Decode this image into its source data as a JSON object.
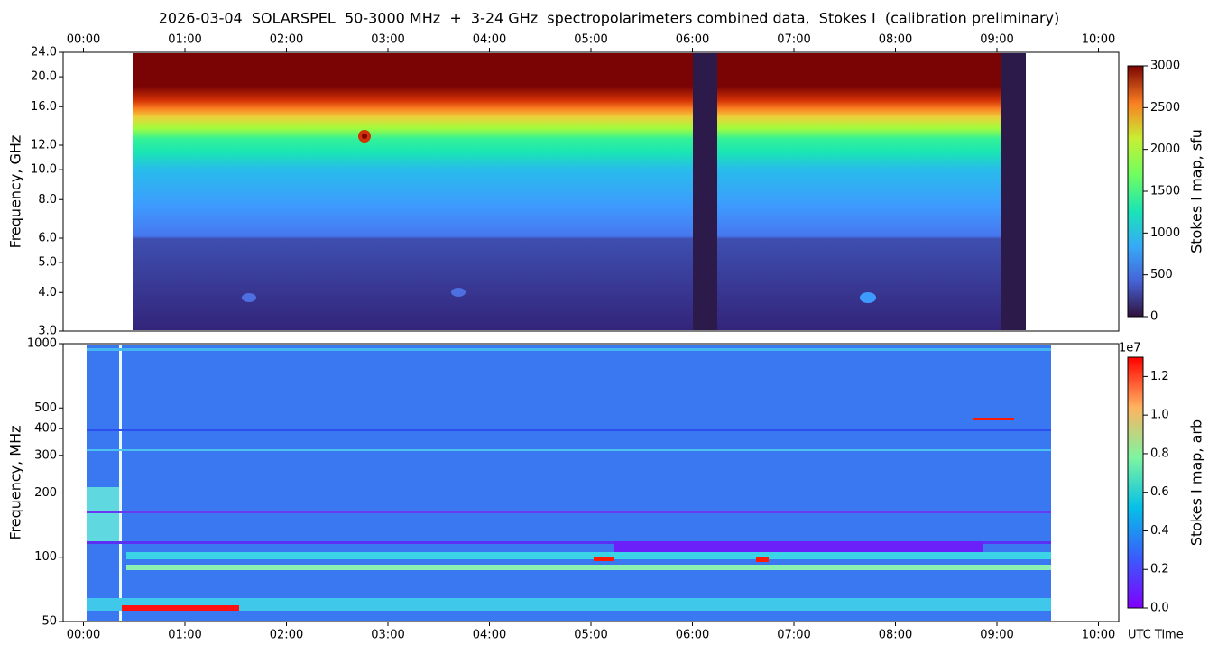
{
  "title": "2026-03-04  SOLARSPEL  50-3000 MHz  +  3-24 GHz  spectropolarimeters combined data,  Stokes I  (calibration preliminary)",
  "chart_data": [
    {
      "type": "heatmap",
      "ylabel": "Frequency, GHz",
      "log_y": true,
      "xtick_side": "top",
      "xlim": [
        -0.2,
        10.2
      ],
      "xticks": [
        {
          "value": 0,
          "label": "00:00"
        },
        {
          "value": 1,
          "label": "01:00"
        },
        {
          "value": 2,
          "label": "02:00"
        },
        {
          "value": 3,
          "label": "03:00"
        },
        {
          "value": 4,
          "label": "04:00"
        },
        {
          "value": 5,
          "label": "05:00"
        },
        {
          "value": 6,
          "label": "06:00"
        },
        {
          "value": 7,
          "label": "07:00"
        },
        {
          "value": 8,
          "label": "08:00"
        },
        {
          "value": 9,
          "label": "09:00"
        },
        {
          "value": 10,
          "label": "10:00"
        }
      ],
      "ylim": [
        3,
        24
      ],
      "yticks": [
        {
          "value": 3,
          "label": "3.0"
        },
        {
          "value": 4,
          "label": "4.0"
        },
        {
          "value": 5,
          "label": "5.0"
        },
        {
          "value": 6,
          "label": "6.0"
        },
        {
          "value": 8,
          "label": "8.0"
        },
        {
          "value": 10,
          "label": "10.0"
        },
        {
          "value": 12,
          "label": "12.0"
        },
        {
          "value": 16,
          "label": "16.0"
        },
        {
          "value": 20,
          "label": "20.0"
        },
        {
          "value": 24,
          "label": "24.0"
        }
      ],
      "colorbar": {
        "label": "Stokes I map, sfu",
        "lim": [
          0,
          3000
        ],
        "ticks": [
          0,
          500,
          1000,
          1500,
          2000,
          2500,
          3000
        ]
      }
    },
    {
      "type": "heatmap",
      "ylabel": "Frequency, MHz",
      "xlabel": "UTC Time",
      "log_y": true,
      "xtick_side": "bottom",
      "xlim": [
        -0.2,
        10.2
      ],
      "xticks": [
        {
          "value": 0,
          "label": "00:00"
        },
        {
          "value": 1,
          "label": "01:00"
        },
        {
          "value": 2,
          "label": "02:00"
        },
        {
          "value": 3,
          "label": "03:00"
        },
        {
          "value": 4,
          "label": "04:00"
        },
        {
          "value": 5,
          "label": "05:00"
        },
        {
          "value": 6,
          "label": "06:00"
        },
        {
          "value": 7,
          "label": "07:00"
        },
        {
          "value": 8,
          "label": "08:00"
        },
        {
          "value": 9,
          "label": "09:00"
        },
        {
          "value": 10,
          "label": "10:00"
        }
      ],
      "ylim": [
        50,
        1000
      ],
      "yticks": [
        50,
        100,
        200,
        300,
        400,
        500,
        1000
      ],
      "colorbar": {
        "label": "Stokes I map, arb",
        "offset_label": "1e7",
        "lim": [
          0,
          13000000
        ],
        "ticks": [
          {
            "value": 0,
            "label": "0.0"
          },
          {
            "value": 2000000,
            "label": "0.2"
          },
          {
            "value": 4000000,
            "label": "0.4"
          },
          {
            "value": 6000000,
            "label": "0.6"
          },
          {
            "value": 8000000,
            "label": "0.8"
          },
          {
            "value": 10000000,
            "label": "1.0"
          },
          {
            "value": 12000000,
            "label": "1.2"
          }
        ]
      }
    }
  ]
}
